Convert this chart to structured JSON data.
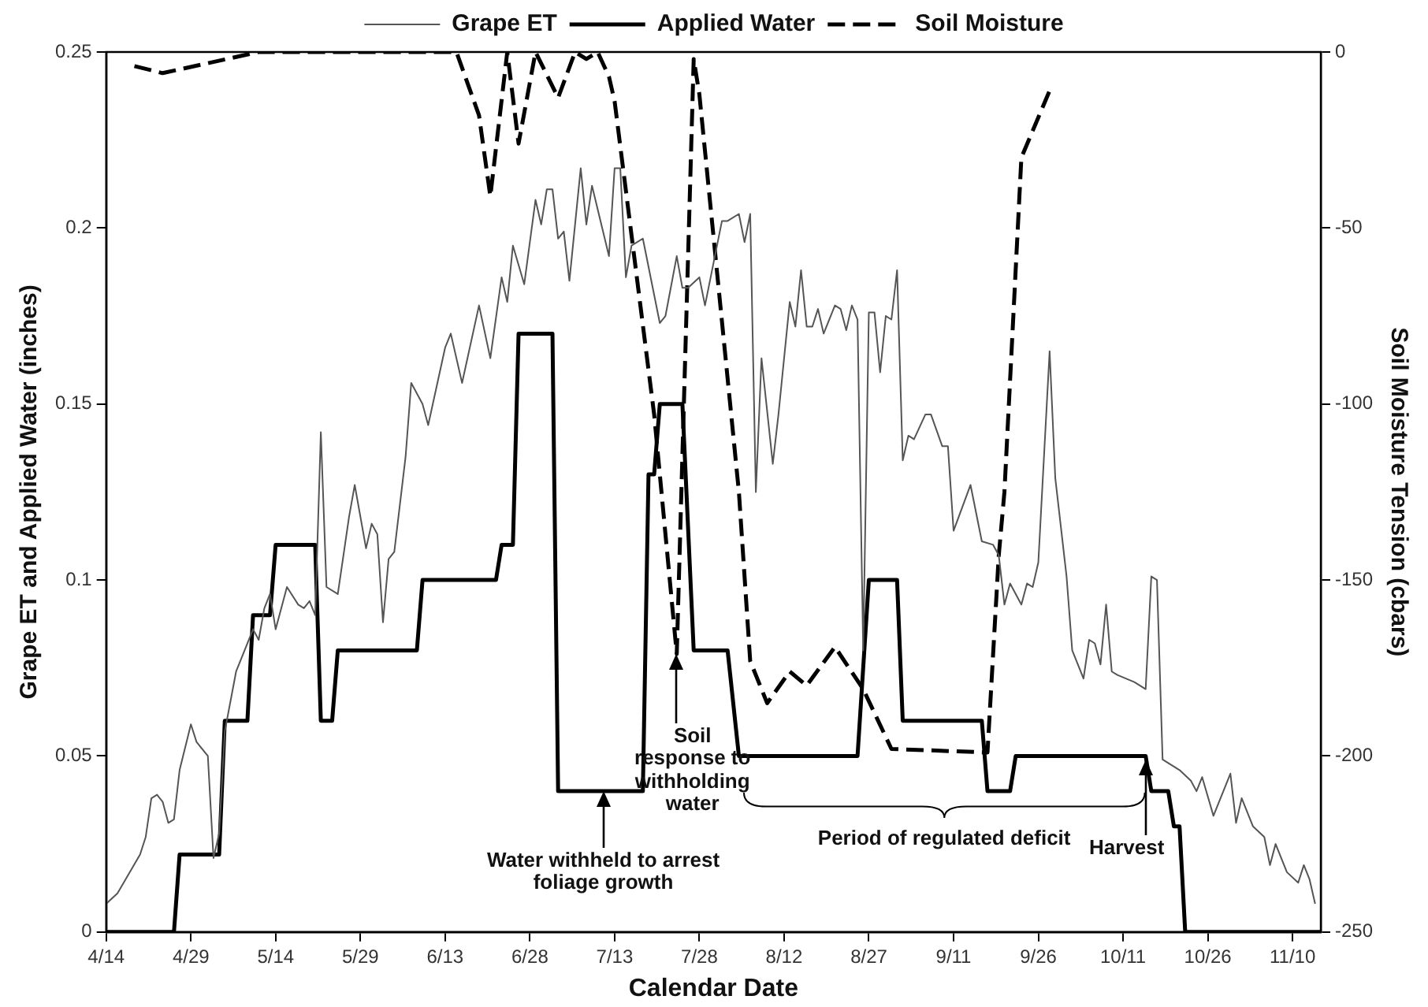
{
  "chart_data": {
    "type": "line",
    "xlabel": "Calendar Date",
    "ylabel": "Grape ET and Applied Water (inches)",
    "y2label": "Soil Moisture Tension (cbars)",
    "xlim": [
      "--04-14",
      "--11-15"
    ],
    "xticks": [
      {
        "value": "--04-14",
        "label": "4/14"
      },
      {
        "value": "--04-29",
        "label": "4/29"
      },
      {
        "value": "--05-14",
        "label": "5/14"
      },
      {
        "value": "--05-29",
        "label": "5/29"
      },
      {
        "value": "--06-13",
        "label": "6/13"
      },
      {
        "value": "--06-28",
        "label": "6/28"
      },
      {
        "value": "--07-13",
        "label": "7/13"
      },
      {
        "value": "--07-28",
        "label": "7/28"
      },
      {
        "value": "--08-12",
        "label": "8/12"
      },
      {
        "value": "--08-27",
        "label": "8/27"
      },
      {
        "value": "--09-11",
        "label": "9/11"
      },
      {
        "value": "--09-26",
        "label": "9/26"
      },
      {
        "value": "--10-11",
        "label": "10/11"
      },
      {
        "value": "--10-26",
        "label": "10/26"
      },
      {
        "value": "--11-10",
        "label": "11/10"
      }
    ],
    "ylim": [
      0,
      0.25
    ],
    "yticks": [
      0,
      0.05,
      0.1,
      0.15,
      0.2,
      0.25
    ],
    "y2lim": [
      -250,
      0
    ],
    "y2ticks": [
      -250,
      -200,
      -150,
      -100,
      -50,
      0
    ],
    "grid": false,
    "legend": "top",
    "marker": "none",
    "series": [
      {
        "name": "Grape ET",
        "color": "#555555",
        "line_style": "solid",
        "x": [
          "--04-14",
          "--04-16",
          "--04-20",
          "--04-21",
          "--04-22",
          "--04-23",
          "--04-24",
          "--04-25",
          "--04-26",
          "--04-27",
          "--04-29",
          "--04-30",
          "--05-02",
          "--05-03",
          "--05-04",
          "--05-05",
          "--05-07",
          "--05-08",
          "--05-10",
          "--05-11",
          "--05-12",
          "--05-13",
          "--05-14",
          "--05-16",
          "--05-18",
          "--05-19",
          "--05-20",
          "--05-21",
          "--05-22",
          "--05-23",
          "--05-25",
          "--05-26",
          "--05-27",
          "--05-28",
          "--05-30",
          "--05-31",
          "--06-01",
          "--06-02",
          "--06-03",
          "--06-04",
          "--06-06",
          "--06-07",
          "--06-09",
          "--06-10",
          "--06-13",
          "--06-14",
          "--06-16",
          "--06-19",
          "--06-21",
          "--06-23",
          "--06-24",
          "--06-25",
          "--06-27",
          "--06-29",
          "--06-30",
          "--07-01",
          "--07-02",
          "--07-03",
          "--07-04",
          "--07-05",
          "--07-07",
          "--07-08",
          "--07-09",
          "--07-12",
          "--07-13",
          "--07-14",
          "--07-15",
          "--07-16",
          "--07-18",
          "--07-21",
          "--07-22",
          "--07-24",
          "--07-25",
          "--07-26",
          "--07-28",
          "--07-29",
          "--08-01",
          "--08-02",
          "--08-04",
          "--08-05",
          "--08-06",
          "--08-07",
          "--08-08",
          "--08-10",
          "--08-11",
          "--08-13",
          "--08-14",
          "--08-15",
          "--08-16",
          "--08-17",
          "--08-18",
          "--08-19",
          "--08-21",
          "--08-22",
          "--08-23",
          "--08-24",
          "--08-25",
          "--08-26",
          "--08-27",
          "--08-28",
          "--08-29",
          "--08-30",
          "--08-31",
          "--09-01",
          "--09-02",
          "--09-03",
          "--09-04",
          "--09-06",
          "--09-07",
          "--09-09",
          "--09-10",
          "--09-11",
          "--09-14",
          "--09-16",
          "--09-18",
          "--09-19",
          "--09-20",
          "--09-21",
          "--09-23",
          "--09-24",
          "--09-25",
          "--09-26",
          "--09-28",
          "--09-29",
          "--10-01",
          "--10-02",
          "--10-04",
          "--10-05",
          "--10-06",
          "--10-07",
          "--10-08",
          "--10-09",
          "--10-10",
          "--10-13",
          "--10-15",
          "--10-16",
          "--10-17",
          "--10-18",
          "--10-21",
          "--10-23",
          "--10-24",
          "--10-25",
          "--10-27",
          "--10-30",
          "--10-31",
          "--11-01",
          "--11-03",
          "--11-05",
          "--11-06",
          "--11-07",
          "--11-09",
          "--11-11",
          "--11-12",
          "--11-13",
          "--11-14"
        ],
        "values": [
          0.008,
          0.011,
          0.022,
          0.027,
          0.038,
          0.039,
          0.037,
          0.031,
          0.032,
          0.046,
          0.059,
          0.054,
          0.05,
          0.021,
          0.028,
          0.057,
          0.074,
          0.078,
          0.086,
          0.083,
          0.092,
          0.096,
          0.086,
          0.098,
          0.093,
          0.092,
          0.094,
          0.09,
          0.142,
          0.098,
          0.096,
          0.107,
          0.118,
          0.127,
          0.109,
          0.116,
          0.113,
          0.088,
          0.106,
          0.108,
          0.135,
          0.156,
          0.15,
          0.144,
          0.166,
          0.17,
          0.156,
          0.178,
          0.163,
          0.186,
          0.179,
          0.195,
          0.184,
          0.208,
          0.201,
          0.211,
          0.211,
          0.197,
          0.199,
          0.185,
          0.217,
          0.201,
          0.212,
          0.192,
          0.217,
          0.217,
          0.186,
          0.195,
          0.197,
          0.173,
          0.175,
          0.192,
          0.183,
          0.183,
          0.186,
          0.178,
          0.202,
          0.202,
          0.204,
          0.196,
          0.204,
          0.125,
          0.163,
          0.133,
          0.147,
          0.179,
          0.172,
          0.188,
          0.172,
          0.172,
          0.177,
          0.17,
          0.178,
          0.177,
          0.171,
          0.178,
          0.174,
          0.08,
          0.176,
          0.176,
          0.159,
          0.175,
          0.174,
          0.188,
          0.134,
          0.141,
          0.14,
          0.147,
          0.147,
          0.138,
          0.138,
          0.114,
          0.127,
          0.111,
          0.11,
          0.107,
          0.093,
          0.099,
          0.093,
          0.099,
          0.098,
          0.105,
          0.165,
          0.129,
          0.101,
          0.08,
          0.072,
          0.083,
          0.082,
          0.076,
          0.093,
          0.074,
          0.073,
          0.071,
          0.069,
          0.101,
          0.1,
          0.049,
          0.046,
          0.043,
          0.04,
          0.044,
          0.033,
          0.045,
          0.031,
          0.038,
          0.03,
          0.027,
          0.019,
          0.025,
          0.017,
          0.014,
          0.019,
          0.015,
          0.008
        ]
      },
      {
        "name": "Applied Water",
        "color": "#000000",
        "line_style": "solid",
        "x": [
          "--04-14",
          "--04-26",
          "--04-27",
          "--05-04",
          "--05-05",
          "--05-09",
          "--05-10",
          "--05-13",
          "--05-14",
          "--05-21",
          "--05-22",
          "--05-24",
          "--05-25",
          "--06-08",
          "--06-09",
          "--06-22",
          "--06-23",
          "--06-25",
          "--06-26",
          "--07-02",
          "--07-03",
          "--07-18",
          "--07-19",
          "--07-20",
          "--07-21",
          "--07-25",
          "--07-27",
          "--08-02",
          "--08-04",
          "--08-25",
          "--08-27",
          "--09-01",
          "--09-02",
          "--09-16",
          "--09-17",
          "--09-21",
          "--09-22",
          "--10-15",
          "--10-16",
          "--10-19",
          "--10-20",
          "--10-21",
          "--10-22",
          "--11-15"
        ],
        "values": [
          0,
          0,
          0.022,
          0.022,
          0.06,
          0.06,
          0.09,
          0.09,
          0.11,
          0.11,
          0.06,
          0.06,
          0.08,
          0.08,
          0.1,
          0.1,
          0.11,
          0.11,
          0.17,
          0.17,
          0.04,
          0.04,
          0.13,
          0.13,
          0.15,
          0.15,
          0.08,
          0.08,
          0.05,
          0.05,
          0.1,
          0.1,
          0.06,
          0.06,
          0.04,
          0.04,
          0.05,
          0.05,
          0.04,
          0.04,
          0.03,
          0.03,
          0,
          0
        ]
      },
      {
        "name": "Soil Moisture",
        "color": "#000000",
        "line_style": "dashed",
        "axis": "y2",
        "x": [
          "--04-19",
          "--04-24",
          "--05-11",
          "--06-15",
          "--06-19",
          "--06-21",
          "--06-24",
          "--06-26",
          "--06-29",
          "--07-03",
          "--07-06",
          "--07-08",
          "--07-10",
          "--07-12",
          "--07-13",
          "--07-20",
          "--07-24",
          "--07-27",
          "--07-28",
          "--08-04",
          "--08-06",
          "--08-09",
          "--08-13",
          "--08-16",
          "--08-21",
          "--08-26",
          "--08-31",
          "--09-17",
          "--09-19",
          "--09-20",
          "--09-23",
          "--09-28"
        ],
        "values": [
          -4,
          -6,
          0,
          0,
          -18,
          -41,
          0,
          -26,
          0,
          -13,
          0,
          -2,
          0,
          -7,
          -14,
          -103,
          -171,
          -2,
          -12,
          -125,
          -173,
          -185,
          -176,
          -180,
          -169,
          -181,
          -198,
          -199,
          -143,
          -125,
          -30,
          -11
        ]
      }
    ],
    "annotations": [
      {
        "text": "Water withheld to arrest foliage growth",
        "x": "--07-11",
        "y": 0.04
      },
      {
        "text": "Soil response to withholding water",
        "x": "--07-24",
        "y": 0.079
      },
      {
        "text": "Harvest",
        "x": "--10-15",
        "y": 0.049
      },
      "Period of regulated deficit"
    ]
  }
}
